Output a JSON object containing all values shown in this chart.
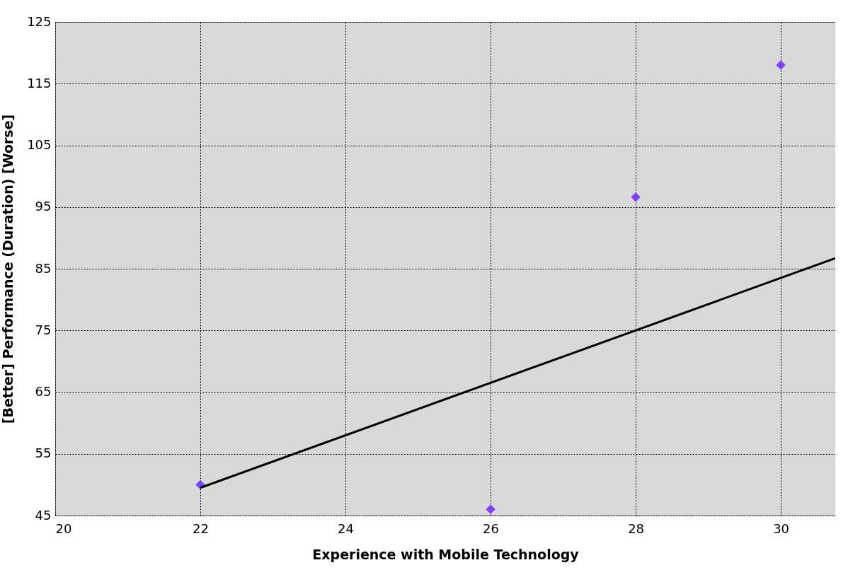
{
  "chart_data": {
    "type": "scatter",
    "xlabel": "Experience with Mobile Technology",
    "ylabel": "[Better]  Performance (Duration)  [Worse]",
    "xlim": [
      20,
      30.75
    ],
    "xticks": [
      20,
      22,
      24,
      26,
      28,
      30
    ],
    "ylim": [
      45,
      125
    ],
    "yticks": [
      45,
      55,
      65,
      75,
      85,
      95,
      105,
      115,
      125
    ],
    "grid": true,
    "series": [
      {
        "marker": "diamond",
        "color": "#8040ff",
        "x": [
          22,
          26,
          28,
          30
        ],
        "values": [
          50,
          46,
          96.6,
          118
        ]
      },
      {
        "type": "line",
        "color": "#000000",
        "x": [
          22,
          30.75
        ],
        "values": [
          49.5,
          86.7
        ]
      }
    ]
  }
}
